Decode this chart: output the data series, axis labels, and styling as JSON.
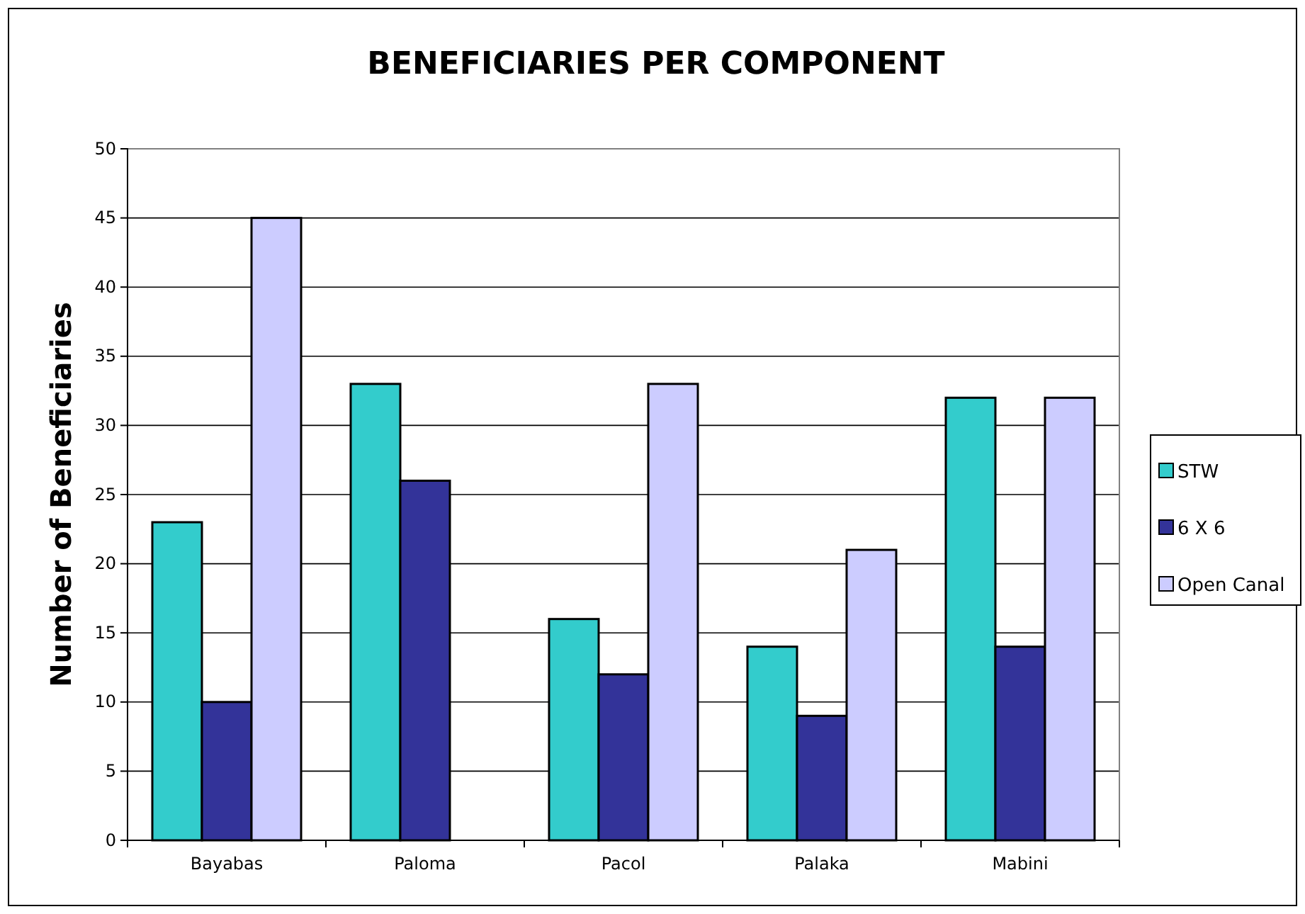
{
  "chart_data": {
    "type": "bar",
    "title": "BENEFICIARIES PER COMPONENT",
    "ylabel": "Number of Beneficiaries",
    "categories": [
      "Bayabas",
      "Paloma",
      "Pacol",
      "Palaka",
      "Mabini"
    ],
    "series": [
      {
        "name": "STW",
        "color": "#33cccc",
        "values": [
          23,
          33,
          16,
          14,
          32
        ]
      },
      {
        "name": "6 X 6",
        "color": "#333399",
        "values": [
          10,
          26,
          12,
          9,
          14
        ]
      },
      {
        "name": "Open Canal",
        "color": "#ccccff",
        "values": [
          45,
          null,
          33,
          21,
          32
        ]
      }
    ],
    "ylim": [
      0,
      50
    ],
    "yticks": [
      0,
      5,
      10,
      15,
      20,
      25,
      30,
      35,
      40,
      45,
      50
    ],
    "grid": "y",
    "legend": "right"
  }
}
